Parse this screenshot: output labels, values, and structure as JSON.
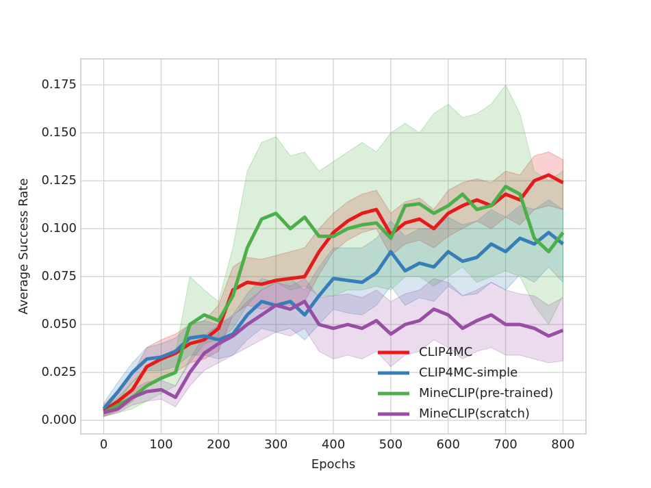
{
  "chart_data": {
    "type": "line",
    "xlabel": "Epochs",
    "ylabel": "Average Success Rate",
    "x": [
      0,
      25,
      50,
      75,
      100,
      125,
      150,
      175,
      200,
      225,
      250,
      275,
      300,
      325,
      350,
      375,
      400,
      425,
      450,
      475,
      500,
      525,
      550,
      575,
      600,
      625,
      650,
      675,
      700,
      725,
      750,
      775,
      800
    ],
    "xlim": [
      -40,
      840
    ],
    "ylim": [
      -0.0071,
      0.1886
    ],
    "xticks": [
      0,
      100,
      200,
      300,
      400,
      500,
      600,
      700,
      800
    ],
    "yticks": [
      {
        "value": 0,
        "label": "0.000"
      },
      {
        "value": 0.025,
        "label": "0.025"
      },
      {
        "value": 0.05,
        "label": "0.050"
      },
      {
        "value": 0.075,
        "label": "0.075"
      },
      {
        "value": 0.1,
        "label": "0.100"
      },
      {
        "value": 0.125,
        "label": "0.125"
      },
      {
        "value": 0.15,
        "label": "0.150"
      },
      {
        "value": 0.175,
        "label": "0.175"
      }
    ],
    "grid": true,
    "legend": "lower right",
    "series": [
      {
        "name": "CLIP4MC",
        "color": "#e41a1c",
        "values": [
          0.005,
          0.01,
          0.016,
          0.028,
          0.032,
          0.035,
          0.04,
          0.042,
          0.048,
          0.068,
          0.072,
          0.071,
          0.073,
          0.074,
          0.075,
          0.088,
          0.098,
          0.104,
          0.108,
          0.11,
          0.097,
          0.103,
          0.105,
          0.1,
          0.108,
          0.112,
          0.115,
          0.112,
          0.118,
          0.115,
          0.125,
          0.128,
          0.124
        ],
        "upper": [
          0.008,
          0.016,
          0.024,
          0.038,
          0.042,
          0.045,
          0.05,
          0.052,
          0.06,
          0.08,
          0.085,
          0.084,
          0.086,
          0.088,
          0.09,
          0.1,
          0.108,
          0.114,
          0.118,
          0.12,
          0.108,
          0.114,
          0.116,
          0.11,
          0.12,
          0.124,
          0.126,
          0.124,
          0.13,
          0.128,
          0.138,
          0.14,
          0.136
        ],
        "lower": [
          0.002,
          0.005,
          0.01,
          0.018,
          0.022,
          0.025,
          0.03,
          0.032,
          0.036,
          0.055,
          0.06,
          0.058,
          0.06,
          0.06,
          0.062,
          0.076,
          0.088,
          0.094,
          0.098,
          0.1,
          0.086,
          0.092,
          0.094,
          0.09,
          0.096,
          0.1,
          0.104,
          0.1,
          0.106,
          0.102,
          0.11,
          0.112,
          0.11
        ]
      },
      {
        "name": "CLIP4MC-simple",
        "color": "#377eb8",
        "values": [
          0.006,
          0.015,
          0.025,
          0.032,
          0.033,
          0.036,
          0.043,
          0.044,
          0.042,
          0.045,
          0.055,
          0.062,
          0.06,
          0.062,
          0.055,
          0.065,
          0.074,
          0.073,
          0.072,
          0.077,
          0.088,
          0.078,
          0.082,
          0.08,
          0.088,
          0.083,
          0.085,
          0.092,
          0.088,
          0.095,
          0.092,
          0.098,
          0.092
        ],
        "upper": [
          0.009,
          0.02,
          0.03,
          0.038,
          0.04,
          0.043,
          0.05,
          0.052,
          0.05,
          0.055,
          0.066,
          0.074,
          0.072,
          0.074,
          0.068,
          0.08,
          0.09,
          0.09,
          0.09,
          0.095,
          0.104,
          0.096,
          0.1,
          0.1,
          0.106,
          0.102,
          0.104,
          0.11,
          0.106,
          0.112,
          0.11,
          0.115,
          0.11
        ],
        "lower": [
          0.003,
          0.01,
          0.02,
          0.026,
          0.026,
          0.028,
          0.034,
          0.034,
          0.032,
          0.034,
          0.042,
          0.048,
          0.046,
          0.048,
          0.042,
          0.05,
          0.058,
          0.056,
          0.055,
          0.06,
          0.07,
          0.06,
          0.064,
          0.062,
          0.07,
          0.065,
          0.066,
          0.072,
          0.068,
          0.076,
          0.072,
          0.08,
          0.072
        ]
      },
      {
        "name": "MineCLIP(pre-trained)",
        "color": "#4daf4a",
        "values": [
          0.004,
          0.008,
          0.012,
          0.018,
          0.022,
          0.025,
          0.05,
          0.055,
          0.052,
          0.065,
          0.09,
          0.105,
          0.108,
          0.1,
          0.106,
          0.096,
          0.096,
          0.1,
          0.102,
          0.103,
          0.095,
          0.112,
          0.113,
          0.108,
          0.112,
          0.118,
          0.11,
          0.112,
          0.122,
          0.118,
          0.095,
          0.088,
          0.098
        ],
        "upper": [
          0.006,
          0.012,
          0.02,
          0.028,
          0.032,
          0.035,
          0.075,
          0.068,
          0.062,
          0.09,
          0.13,
          0.145,
          0.148,
          0.138,
          0.14,
          0.13,
          0.135,
          0.14,
          0.145,
          0.14,
          0.15,
          0.155,
          0.15,
          0.16,
          0.165,
          0.158,
          0.16,
          0.165,
          0.175,
          0.16,
          0.13,
          0.125,
          0.13
        ],
        "lower": [
          0.002,
          0.004,
          0.006,
          0.01,
          0.014,
          0.018,
          0.03,
          0.04,
          0.042,
          0.048,
          0.06,
          0.068,
          0.072,
          0.068,
          0.07,
          0.065,
          0.065,
          0.068,
          0.068,
          0.07,
          0.068,
          0.075,
          0.075,
          0.07,
          0.075,
          0.08,
          0.072,
          0.075,
          0.078,
          0.075,
          0.06,
          0.05,
          0.065
        ]
      },
      {
        "name": "MineCLIP(scratch)",
        "color": "#984ea3",
        "values": [
          0.004,
          0.006,
          0.012,
          0.015,
          0.016,
          0.012,
          0.025,
          0.035,
          0.04,
          0.044,
          0.05,
          0.055,
          0.06,
          0.058,
          0.062,
          0.05,
          0.048,
          0.05,
          0.048,
          0.052,
          0.045,
          0.05,
          0.052,
          0.058,
          0.055,
          0.048,
          0.052,
          0.055,
          0.05,
          0.05,
          0.048,
          0.044,
          0.047
        ],
        "upper": [
          0.006,
          0.009,
          0.016,
          0.02,
          0.021,
          0.018,
          0.032,
          0.044,
          0.05,
          0.054,
          0.062,
          0.068,
          0.072,
          0.07,
          0.074,
          0.064,
          0.065,
          0.066,
          0.064,
          0.068,
          0.062,
          0.066,
          0.068,
          0.074,
          0.072,
          0.065,
          0.068,
          0.072,
          0.068,
          0.066,
          0.065,
          0.06,
          0.064
        ],
        "lower": [
          0.002,
          0.004,
          0.008,
          0.01,
          0.011,
          0.007,
          0.018,
          0.026,
          0.03,
          0.034,
          0.038,
          0.042,
          0.046,
          0.044,
          0.048,
          0.036,
          0.032,
          0.034,
          0.032,
          0.036,
          0.028,
          0.034,
          0.036,
          0.042,
          0.038,
          0.032,
          0.036,
          0.038,
          0.034,
          0.034,
          0.032,
          0.03,
          0.031
        ]
      }
    ]
  }
}
